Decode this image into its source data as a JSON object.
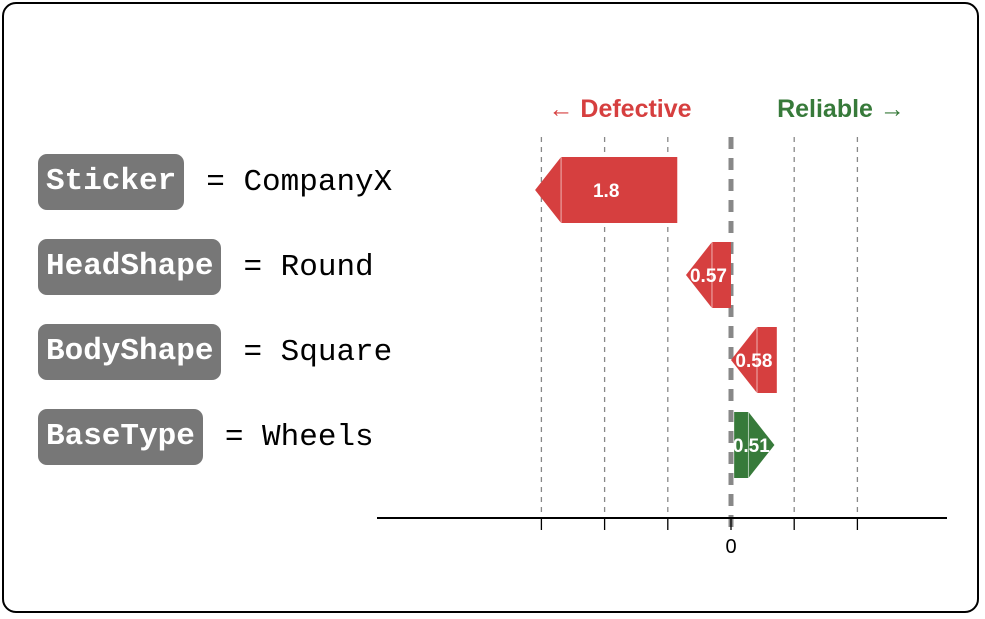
{
  "chart_data": {
    "type": "bar",
    "orientation": "horizontal",
    "direction_labels": {
      "negative": "← Defective",
      "positive": "Reliable →"
    },
    "categories": [
      {
        "feature": "Sticker",
        "value_text": "= CompanyX"
      },
      {
        "feature": "HeadShape",
        "value_text": "= Round"
      },
      {
        "feature": "BodyShape",
        "value_text": "= Square"
      },
      {
        "feature": "BaseType",
        "value_text": "= Wheels"
      }
    ],
    "bars": [
      {
        "start": -0.68,
        "end": -2.48,
        "value": -1.8,
        "label": "1.8"
      },
      {
        "start": -0.0,
        "end": -0.57,
        "value": -0.57,
        "label": "0.57"
      },
      {
        "start": 0.58,
        "end": 0.0,
        "value": -0.58,
        "label": "0.58"
      },
      {
        "start": 0.04,
        "end": 0.55,
        "value": 0.51,
        "label": "0.51"
      }
    ],
    "xlim": [
      -3.5,
      3.4
    ],
    "tick_values": [
      -2.4,
      -1.6,
      -0.8,
      0,
      0.8,
      1.6
    ],
    "tick_labels": {
      "0": "0"
    },
    "grid": true,
    "colors": {
      "negative": "#d63f3f",
      "positive": "#377a3a",
      "zero_line": "#888888",
      "grid": "#888888"
    }
  }
}
